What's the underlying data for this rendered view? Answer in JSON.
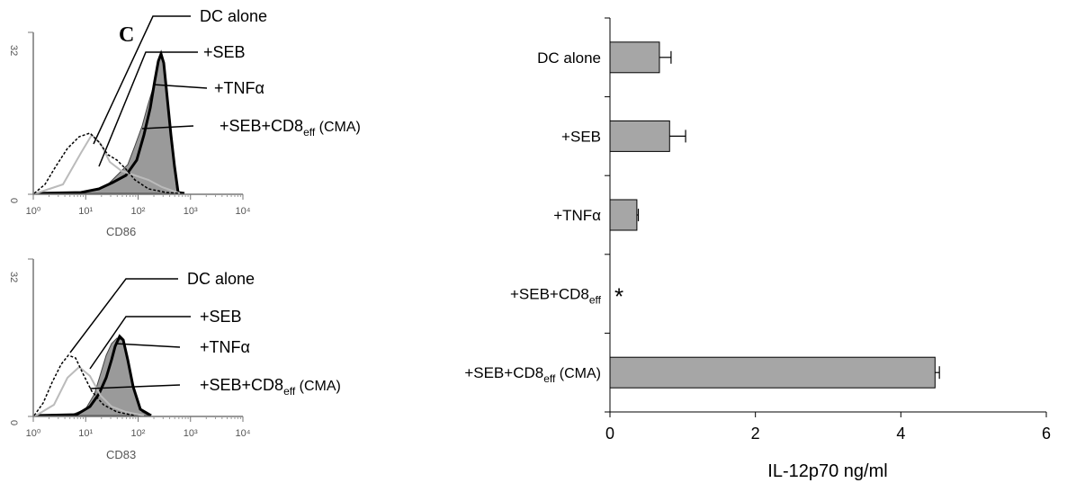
{
  "panel_letter": "C",
  "chart_data": [
    {
      "type": "histogram-overlay",
      "xlabel": "CD86",
      "x_scale": "log",
      "xlim": [
        1,
        10000
      ],
      "ylim": [
        0,
        32
      ],
      "ytick_labels": [
        "0",
        "32"
      ],
      "xtick_labels": [
        "10⁰",
        "10¹",
        "10²",
        "10³",
        "10⁴"
      ],
      "legend": [
        {
          "base": "DC alone",
          "sub": "",
          "tail": ""
        },
        {
          "base": "+SEB",
          "sub": "",
          "tail": ""
        },
        {
          "base": "+TNFα",
          "sub": "",
          "tail": ""
        },
        {
          "base": "+SEB+CD8",
          "sub": "eff",
          "tail": " (CMA)"
        }
      ]
    },
    {
      "type": "histogram-overlay",
      "xlabel": "CD83",
      "x_scale": "log",
      "xlim": [
        1,
        10000
      ],
      "ylim": [
        0,
        32
      ],
      "ytick_labels": [
        "0",
        "32"
      ],
      "xtick_labels": [
        "10⁰",
        "10¹",
        "10²",
        "10³",
        "10⁴"
      ],
      "legend": [
        {
          "base": "DC alone",
          "sub": "",
          "tail": ""
        },
        {
          "base": "+SEB",
          "sub": "",
          "tail": ""
        },
        {
          "base": "+TNFα",
          "sub": "",
          "tail": ""
        },
        {
          "base": "+SEB+CD8",
          "sub": "eff",
          "tail": " (CMA)"
        }
      ]
    },
    {
      "type": "bar",
      "orientation": "horizontal",
      "categories": [
        {
          "base": "DC alone",
          "sub": "",
          "tail": ""
        },
        {
          "base": "+SEB",
          "sub": "",
          "tail": ""
        },
        {
          "base": "+TNFα",
          "sub": "",
          "tail": ""
        },
        {
          "base": "+SEB+CD8",
          "sub": "eff",
          "tail": ""
        },
        {
          "base": "+SEB+CD8",
          "sub": "eff",
          "tail": " (CMA)"
        }
      ],
      "values": [
        0.68,
        0.82,
        0.37,
        0,
        4.47
      ],
      "errors": [
        0.16,
        0.22,
        0.02,
        0,
        0.06
      ],
      "annotations": [
        "",
        "",
        "",
        "*",
        ""
      ],
      "xlabel": "IL-12p70 ng/ml",
      "xlim": [
        0,
        6
      ],
      "xticks": [
        0,
        2,
        4,
        6
      ],
      "grid": false,
      "bar_color": "#a6a6a6"
    }
  ]
}
